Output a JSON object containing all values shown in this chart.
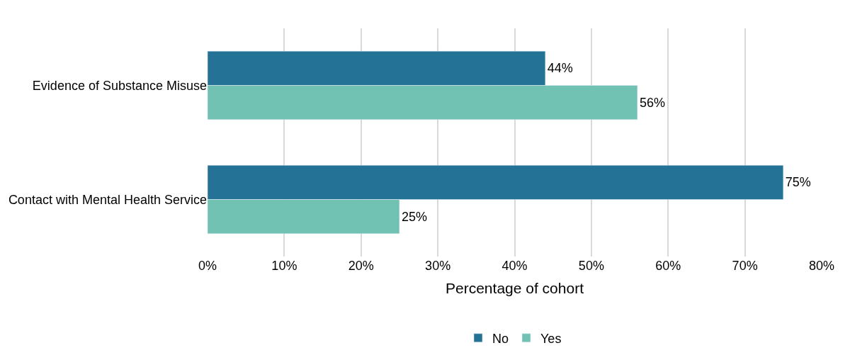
{
  "chart_data": {
    "type": "bar",
    "orientation": "horizontal",
    "xlabel": "Percentage of cohort",
    "categories": [
      "Evidence of Substance Misuse",
      "Contact with Mental Health Service"
    ],
    "series": [
      {
        "name": "No",
        "color": "#247396",
        "values": [
          44,
          75
        ],
        "value_labels": [
          "44%",
          "75%"
        ]
      },
      {
        "name": "Yes",
        "color": "#72c2b3",
        "values": [
          56,
          25
        ],
        "value_labels": [
          "56%",
          "25%"
        ]
      }
    ],
    "xlim": [
      0,
      80
    ],
    "xticks": [
      {
        "value": 0,
        "label": "0%"
      },
      {
        "value": 10,
        "label": "10%"
      },
      {
        "value": 20,
        "label": "20%"
      },
      {
        "value": 30,
        "label": "30%"
      },
      {
        "value": 40,
        "label": "40%"
      },
      {
        "value": 50,
        "label": "50%"
      },
      {
        "value": 60,
        "label": "60%"
      },
      {
        "value": 70,
        "label": "70%"
      },
      {
        "value": 80,
        "label": "80%"
      }
    ],
    "grid": "x",
    "legend": "bottom"
  }
}
